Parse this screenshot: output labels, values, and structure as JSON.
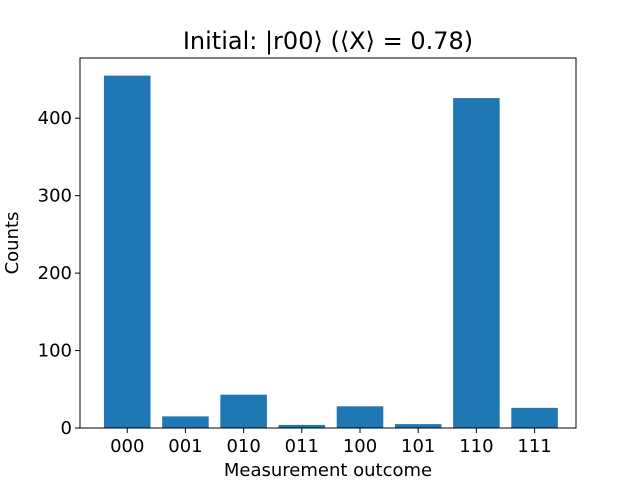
{
  "chart_data": {
    "type": "bar",
    "title": "Initial: |r00⟩ (⟨X⟩ = 0.78)",
    "xlabel": "Measurement outcome",
    "ylabel": "Counts",
    "categories": [
      "000",
      "001",
      "010",
      "011",
      "100",
      "101",
      "110",
      "111"
    ],
    "values": [
      455,
      15,
      43,
      4,
      28,
      5,
      426,
      26
    ],
    "ylim": [
      0,
      477.75
    ],
    "yticks": [
      0,
      100,
      200,
      300,
      400
    ],
    "grid": false,
    "legend": "none",
    "bar_color": "#1f77b4"
  }
}
